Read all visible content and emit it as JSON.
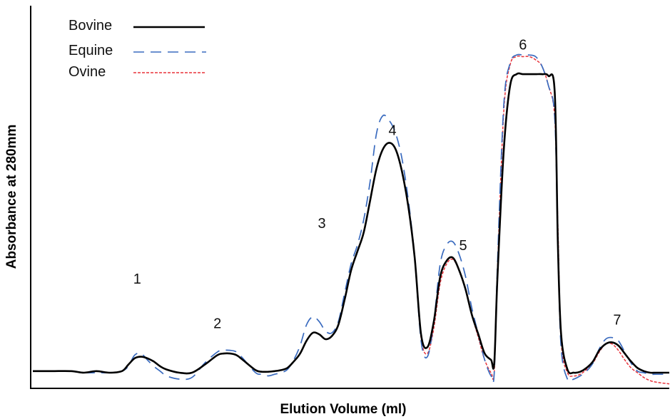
{
  "chart_data": {
    "type": "line",
    "title": "",
    "xlabel": "Elution Volume (ml)",
    "ylabel": "Absorbance at 280mm",
    "xlim": [
      0,
      100
    ],
    "ylim": [
      0,
      100
    ],
    "grid": false,
    "legend_position": "top-left",
    "peak_labels": [
      {
        "text": "1",
        "x": 16.4,
        "y": 27.9
      },
      {
        "text": "2",
        "x": 29.0,
        "y": 13.9
      },
      {
        "text": "3",
        "x": 45.4,
        "y": 45.3
      },
      {
        "text": "4",
        "x": 56.5,
        "y": 74.4
      },
      {
        "text": "5",
        "x": 67.6,
        "y": 38.4
      },
      {
        "text": "6",
        "x": 77.0,
        "y": 101.2
      },
      {
        "text": "7",
        "x": 91.8,
        "y": 15.1
      }
    ],
    "series": [
      {
        "name": "Bovine",
        "color": "#000000",
        "dash": "solid",
        "x": [
          0,
          3,
          6,
          8,
          10,
          12,
          14,
          15,
          16,
          17,
          18,
          19,
          20,
          21,
          23,
          25,
          27,
          29,
          30,
          31,
          32,
          33,
          35,
          36,
          37,
          38,
          39,
          40,
          41,
          42,
          43,
          44,
          45,
          46,
          47,
          48,
          49,
          50,
          51,
          52,
          53,
          54,
          55,
          56,
          57,
          58,
          59,
          60,
          61,
          62,
          63,
          64,
          65,
          66,
          67,
          68,
          69,
          70,
          71,
          72,
          72.5,
          73,
          74,
          75,
          76,
          77,
          78,
          79,
          80,
          81,
          82,
          82.5,
          83,
          84,
          85,
          86,
          87,
          88,
          89,
          90,
          91,
          92,
          93,
          94,
          95,
          96,
          97,
          98,
          100
        ],
        "y": [
          0.5,
          0.5,
          0.5,
          0.0,
          0.5,
          0.0,
          0.5,
          2.5,
          4.5,
          5.0,
          4.5,
          3.5,
          2.0,
          1.0,
          0.0,
          0.0,
          2.5,
          5.5,
          6.0,
          6.0,
          5.5,
          4.0,
          0.8,
          0.3,
          0.3,
          0.5,
          0.8,
          1.5,
          3.5,
          6.0,
          10.0,
          12.5,
          12.0,
          10.5,
          11.5,
          15.0,
          23.0,
          32.0,
          38.0,
          44.0,
          54.0,
          64.0,
          70.0,
          72.0,
          70.0,
          63.0,
          52.0,
          36.0,
          12.0,
          8.0,
          16.0,
          30.0,
          35.0,
          36.0,
          32.0,
          26.0,
          18.0,
          12.0,
          6.0,
          4.0,
          3.0,
          30.0,
          70.0,
          90.0,
          93.5,
          93.5,
          93.5,
          93.5,
          93.5,
          93.0,
          88.0,
          40.0,
          12.0,
          1.0,
          0.0,
          0.3,
          1.5,
          3.5,
          7.0,
          9.0,
          9.5,
          8.5,
          6.0,
          3.5,
          1.5,
          0.5,
          0.0,
          0.0,
          0.0
        ]
      },
      {
        "name": "Equine",
        "color": "#3a6bbf",
        "dash": "long-dash",
        "x": [
          0,
          3,
          6,
          8,
          10,
          12,
          14,
          15,
          16,
          17,
          18,
          19,
          20,
          21,
          23,
          25,
          27,
          29,
          30,
          31,
          32,
          33,
          35,
          36,
          37,
          38,
          39,
          40,
          41,
          42,
          43,
          44,
          45,
          46,
          47,
          48,
          49,
          50,
          51,
          52,
          53,
          54,
          55,
          56,
          57,
          58,
          59,
          60,
          61,
          62,
          63,
          64,
          65,
          66,
          67,
          68,
          69,
          70,
          71,
          72,
          72.5,
          73,
          74,
          75,
          76,
          77,
          78,
          79,
          80,
          81,
          82,
          82.5,
          83,
          84,
          85,
          86,
          87,
          88,
          89,
          90,
          91,
          92,
          93,
          94,
          95,
          96,
          97,
          98,
          100
        ],
        "y": [
          0.5,
          0.5,
          0.5,
          0.0,
          0.0,
          0.0,
          0.5,
          2.0,
          5.5,
          6.0,
          4.0,
          2.0,
          0.5,
          -1.0,
          -2.0,
          -1.5,
          3.0,
          6.5,
          7.0,
          7.0,
          6.5,
          4.5,
          0.0,
          -0.5,
          -1.0,
          -0.5,
          0.0,
          1.0,
          4.0,
          8.5,
          15.0,
          17.5,
          16.0,
          13.0,
          12.5,
          16.0,
          25.0,
          34.0,
          40.0,
          48.0,
          60.0,
          75.0,
          80.5,
          79.0,
          75.0,
          67.0,
          54.0,
          36.0,
          10.0,
          5.0,
          16.0,
          34.0,
          40.0,
          41.0,
          37.0,
          30.0,
          20.0,
          12.0,
          4.0,
          -1.0,
          0.0,
          34.0,
          84.0,
          97.0,
          99.5,
          99.5,
          99.5,
          99.0,
          96.0,
          90.0,
          80.0,
          40.0,
          8.0,
          -2.0,
          -2.0,
          -1.0,
          0.5,
          3.0,
          7.5,
          10.5,
          11.0,
          10.0,
          6.5,
          3.0,
          0.5,
          0.0,
          -0.5,
          -0.5,
          -0.5
        ]
      },
      {
        "name": "Ovine",
        "color": "#e8323a",
        "dash": "short-dash",
        "x": [
          0,
          3,
          6,
          8,
          10,
          12,
          14,
          15,
          16,
          17,
          18,
          19,
          20,
          21,
          23,
          25,
          27,
          29,
          30,
          31,
          32,
          33,
          35,
          36,
          37,
          38,
          39,
          40,
          41,
          42,
          43,
          44,
          45,
          46,
          47,
          48,
          49,
          50,
          51,
          52,
          53,
          54,
          55,
          56,
          57,
          58,
          59,
          60,
          61,
          62,
          63,
          64,
          65,
          66,
          67,
          68,
          69,
          70,
          71,
          72,
          72.5,
          73,
          74,
          75,
          76,
          77,
          78,
          79,
          80,
          81,
          82,
          82.5,
          83,
          84,
          85,
          86,
          87,
          88,
          89,
          90,
          91,
          92,
          93,
          94,
          95,
          96,
          97,
          98,
          100
        ],
        "y": [
          0.5,
          0.5,
          0.5,
          0.0,
          0.5,
          0.0,
          0.5,
          2.5,
          4.5,
          5.0,
          4.5,
          3.5,
          2.0,
          1.0,
          0.0,
          0.0,
          2.5,
          5.5,
          6.0,
          6.0,
          5.5,
          4.0,
          0.8,
          0.3,
          0.3,
          0.5,
          0.8,
          1.5,
          3.5,
          6.0,
          10.0,
          12.5,
          12.0,
          10.5,
          11.5,
          15.0,
          23.0,
          32.0,
          38.0,
          44.0,
          54.0,
          64.0,
          70.0,
          72.0,
          70.0,
          63.0,
          52.0,
          36.0,
          11.0,
          6.0,
          14.0,
          28.0,
          34.0,
          35.5,
          32.0,
          26.0,
          18.0,
          11.0,
          4.0,
          0.0,
          0.5,
          32.0,
          82.0,
          96.5,
          99.0,
          99.0,
          99.0,
          98.0,
          96.0,
          90.0,
          80.0,
          46.0,
          10.0,
          0.0,
          -1.0,
          -0.5,
          1.0,
          3.0,
          6.5,
          9.0,
          9.0,
          7.0,
          4.0,
          1.5,
          0.0,
          -1.5,
          -2.5,
          -3.0,
          -3.5
        ]
      }
    ]
  }
}
